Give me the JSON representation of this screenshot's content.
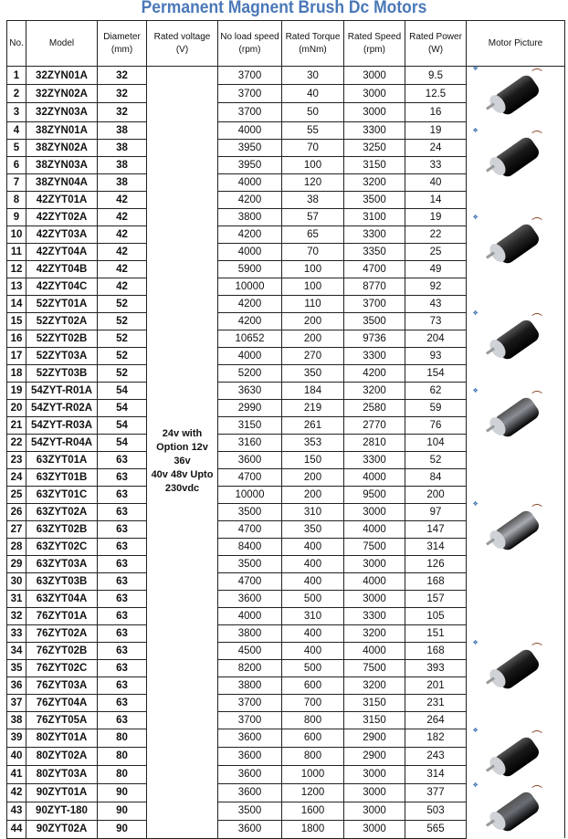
{
  "title": "Permanent Magnent Brush Dc Motors",
  "headers": [
    [
      "No.",
      ""
    ],
    [
      "Model",
      ""
    ],
    [
      "Diameter",
      "(mm)"
    ],
    [
      "Rated voltage",
      "(V)"
    ],
    [
      "No load speed",
      "(rpm)"
    ],
    [
      "Rated Torque",
      "(mNm)"
    ],
    [
      "Rated Speed",
      "(rpm)"
    ],
    [
      "Rated Power",
      "(W)"
    ],
    [
      "Motor Picture",
      ""
    ]
  ],
  "voltage_lines": [
    "24v with",
    "Option 12v 36v",
    "40v 48v Upto",
    "230vdc"
  ],
  "picture_groups": [
    {
      "rows": 3,
      "color": "#1a1a1a"
    },
    {
      "rows": 4,
      "color": "#1a1a1a"
    },
    {
      "rows": 6,
      "color": "#2a2a2a"
    },
    {
      "rows": 5,
      "color": "#1a1a1a"
    },
    {
      "rows": 4,
      "color": "#8a8e94"
    },
    {
      "rows": 9,
      "color": "#a8acb2"
    },
    {
      "rows": 7,
      "color": "#1a1a1a"
    },
    {
      "rows": 3,
      "color": "#1a1a1a"
    },
    {
      "rows": 3,
      "color": "#6a6e74"
    }
  ],
  "rows": [
    [
      "1",
      "32ZYN01A",
      "32",
      "3700",
      "30",
      "3000",
      "9.5"
    ],
    [
      "2",
      "32ZYN02A",
      "32",
      "3700",
      "40",
      "3000",
      "12.5"
    ],
    [
      "3",
      "32ZYN03A",
      "32",
      "3700",
      "50",
      "3000",
      "16"
    ],
    [
      "4",
      "38ZYN01A",
      "38",
      "4000",
      "55",
      "3300",
      "19"
    ],
    [
      "5",
      "38ZYN02A",
      "38",
      "3950",
      "70",
      "3250",
      "24"
    ],
    [
      "6",
      "38ZYN03A",
      "38",
      "3950",
      "100",
      "3150",
      "33"
    ],
    [
      "7",
      "38ZYN04A",
      "38",
      "4000",
      "120",
      "3200",
      "40"
    ],
    [
      "8",
      "42ZYT01A",
      "42",
      "4200",
      "38",
      "3500",
      "14"
    ],
    [
      "9",
      "42ZYT02A",
      "42",
      "3800",
      "57",
      "3100",
      "19"
    ],
    [
      "10",
      "42ZYT03A",
      "42",
      "4200",
      "65",
      "3300",
      "22"
    ],
    [
      "11",
      "42ZYT04A",
      "42",
      "4000",
      "70",
      "3350",
      "25"
    ],
    [
      "12",
      "42ZYT04B",
      "42",
      "5900",
      "100",
      "4700",
      "49"
    ],
    [
      "13",
      "42ZYT04C",
      "42",
      "10000",
      "100",
      "8770",
      "92"
    ],
    [
      "14",
      "52ZYT01A",
      "52",
      "4200",
      "110",
      "3700",
      "43"
    ],
    [
      "15",
      "52ZYT02A",
      "52",
      "4200",
      "200",
      "3500",
      "73"
    ],
    [
      "16",
      "52ZYT02B",
      "52",
      "10652",
      "200",
      "9736",
      "204"
    ],
    [
      "17",
      "52ZYT03A",
      "52",
      "4000",
      "270",
      "3300",
      "93"
    ],
    [
      "18",
      "52ZYT03B",
      "52",
      "5200",
      "350",
      "4200",
      "154"
    ],
    [
      "19",
      "54ZYT-R01A",
      "54",
      "3630",
      "184",
      "3200",
      "62"
    ],
    [
      "20",
      "54ZYT-R02A",
      "54",
      "2990",
      "219",
      "2580",
      "59"
    ],
    [
      "21",
      "54ZYT-R03A",
      "54",
      "3150",
      "261",
      "2770",
      "76"
    ],
    [
      "22",
      "54ZYT-R04A",
      "54",
      "3160",
      "353",
      "2810",
      "104"
    ],
    [
      "23",
      "63ZYT01A",
      "63",
      "3600",
      "150",
      "3300",
      "52"
    ],
    [
      "24",
      "63ZYT01B",
      "63",
      "4700",
      "200",
      "4000",
      "84"
    ],
    [
      "25",
      "63ZYT01C",
      "63",
      "10000",
      "200",
      "9500",
      "200"
    ],
    [
      "26",
      "63ZYT02A",
      "63",
      "3500",
      "310",
      "3000",
      "97"
    ],
    [
      "27",
      "63ZYT02B",
      "63",
      "4700",
      "350",
      "4000",
      "147"
    ],
    [
      "28",
      "63ZYT02C",
      "63",
      "8400",
      "400",
      "7500",
      "314"
    ],
    [
      "29",
      "63ZYT03A",
      "63",
      "3500",
      "400",
      "3000",
      "126"
    ],
    [
      "30",
      "63ZYT03B",
      "63",
      "4700",
      "400",
      "4000",
      "168"
    ],
    [
      "31",
      "63ZYT04A",
      "63",
      "3600",
      "500",
      "3000",
      "157"
    ],
    [
      "32",
      "76ZYT01A",
      "63",
      "4000",
      "310",
      "3300",
      "105"
    ],
    [
      "33",
      "76ZYT02A",
      "63",
      "3800",
      "400",
      "3200",
      "151"
    ],
    [
      "34",
      "76ZYT02B",
      "63",
      "4500",
      "400",
      "4000",
      "168"
    ],
    [
      "35",
      "76ZYT02C",
      "63",
      "8200",
      "500",
      "7500",
      "393"
    ],
    [
      "36",
      "76ZYT03A",
      "63",
      "3800",
      "600",
      "3200",
      "201"
    ],
    [
      "37",
      "76ZYT04A",
      "63",
      "3700",
      "700",
      "3150",
      "231"
    ],
    [
      "38",
      "76ZYT05A",
      "63",
      "3700",
      "800",
      "3150",
      "264"
    ],
    [
      "39",
      "80ZYT01A",
      "80",
      "3600",
      "600",
      "2900",
      "182"
    ],
    [
      "40",
      "80ZYT02A",
      "80",
      "3600",
      "800",
      "2900",
      "243"
    ],
    [
      "41",
      "80ZYT03A",
      "80",
      "3600",
      "1000",
      "3000",
      "314"
    ],
    [
      "42",
      "90ZYT01A",
      "90",
      "3600",
      "1200",
      "3000",
      "377"
    ],
    [
      "43",
      "90ZYT-180",
      "90",
      "3500",
      "1600",
      "3000",
      "503"
    ],
    [
      "44",
      "90ZYT02A",
      "90",
      "3600",
      "1800",
      "3000",
      "565"
    ]
  ]
}
